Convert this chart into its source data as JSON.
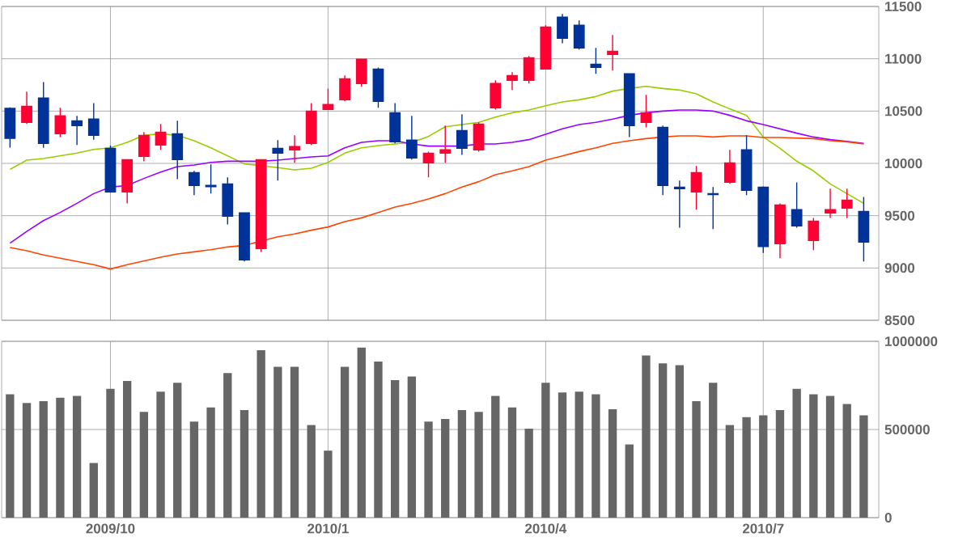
{
  "chart_data": [
    {
      "type": "candlestick",
      "categories": [
        null,
        null,
        null,
        null,
        null,
        null,
        "2009/10",
        null,
        null,
        null,
        null,
        null,
        null,
        null,
        null,
        null,
        null,
        null,
        null,
        "2010/1",
        null,
        null,
        null,
        null,
        null,
        null,
        null,
        null,
        null,
        null,
        null,
        null,
        "2010/4",
        null,
        null,
        null,
        null,
        null,
        null,
        null,
        null,
        null,
        null,
        null,
        null,
        "2010/7",
        null,
        null,
        null,
        null,
        null,
        null
      ],
      "ohlc": [
        [
          10526,
          10536,
          10150,
          10240
        ],
        [
          10392,
          10686,
          10376,
          10546
        ],
        [
          10624,
          10778,
          10149,
          10191
        ],
        [
          10283,
          10531,
          10252,
          10454
        ],
        [
          10407,
          10454,
          10175,
          10361
        ],
        [
          10423,
          10577,
          10227,
          10268
        ],
        [
          10144,
          10170,
          9720,
          9727
        ],
        [
          9727,
          10040,
          9618,
          10036
        ],
        [
          10067,
          10299,
          10020,
          10268
        ],
        [
          10175,
          10376,
          10129,
          10299
        ],
        [
          10283,
          10407,
          9850,
          10036
        ],
        [
          9912,
          9928,
          9696,
          9789
        ],
        [
          9789,
          9990,
          9711,
          9778
        ],
        [
          9804,
          9866,
          9417,
          9495
        ],
        [
          9526,
          9530,
          9062,
          9077
        ],
        [
          9185,
          10040,
          9154,
          10036
        ],
        [
          10144,
          10222,
          9835,
          10098
        ],
        [
          10129,
          10268,
          10005,
          10160
        ],
        [
          10191,
          10577,
          10175,
          10500
        ],
        [
          10515,
          10716,
          10510,
          10562
        ],
        [
          10608,
          10840,
          10593,
          10809
        ],
        [
          10763,
          11000,
          10732,
          10995
        ],
        [
          10902,
          10917,
          10531,
          10593
        ],
        [
          10484,
          10577,
          10191,
          10206
        ],
        [
          10222,
          10454,
          10036,
          10051
        ],
        [
          10005,
          10113,
          9866,
          10098
        ],
        [
          10098,
          10361,
          10005,
          10129
        ],
        [
          10314,
          10469,
          10082,
          10144
        ],
        [
          10129,
          10392,
          10113,
          10376
        ],
        [
          10531,
          10794,
          10515,
          10763
        ],
        [
          10794,
          10871,
          10701,
          10840
        ],
        [
          10794,
          11026,
          10763,
          11010
        ],
        [
          10902,
          11320,
          10900,
          11304
        ],
        [
          11397,
          11428,
          11149,
          11196
        ],
        [
          11320,
          11366,
          11088,
          11103
        ],
        [
          10948,
          11103,
          10856,
          10917
        ],
        [
          11041,
          11227,
          10887,
          11072
        ],
        [
          10856,
          10860,
          10252,
          10361
        ],
        [
          10392,
          10655,
          10345,
          10484
        ],
        [
          10345,
          10361,
          9696,
          9789
        ],
        [
          9773,
          9835,
          9386,
          9758
        ],
        [
          9727,
          9974,
          9557,
          9912
        ],
        [
          9711,
          9773,
          9371,
          9701
        ],
        [
          9819,
          10129,
          9804,
          10005
        ],
        [
          10129,
          10268,
          9696,
          9742
        ],
        [
          9773,
          9780,
          9144,
          9206
        ],
        [
          9232,
          9618,
          9093,
          9603
        ],
        [
          9557,
          9819,
          9386,
          9402
        ],
        [
          9263,
          9479,
          9170,
          9448
        ],
        [
          9526,
          9758,
          9479,
          9557
        ],
        [
          9572,
          9758,
          9479,
          9649
        ],
        [
          9541,
          9680,
          9062,
          9247
        ]
      ],
      "colors": [
        "#003399",
        "#ff0033",
        "#003399",
        "#ff0033",
        "#003399",
        "#003399",
        "#003399",
        "#ff0033",
        "#ff0033",
        "#ff0033",
        "#003399",
        "#003399",
        "#003399",
        "#003399",
        "#003399",
        "#ff0033",
        "#003399",
        "#ff0033",
        "#ff0033",
        "#ff0033",
        "#ff0033",
        "#ff0033",
        "#003399",
        "#003399",
        "#003399",
        "#ff0033",
        "#ff0033",
        "#003399",
        "#ff0033",
        "#ff0033",
        "#ff0033",
        "#ff0033",
        "#ff0033",
        "#003399",
        "#003399",
        "#003399",
        "#ff0033",
        "#003399",
        "#ff0033",
        "#003399",
        "#003399",
        "#ff0033",
        "#003399",
        "#ff0033",
        "#003399",
        "#003399",
        "#ff0033",
        "#003399",
        "#ff0033",
        "#ff0033",
        "#ff0033",
        "#003399"
      ],
      "series": [
        {
          "type": "line",
          "color": "#99cc00",
          "values": [
            9943,
            10031,
            10046,
            10072,
            10098,
            10134,
            10149,
            10201,
            10268,
            10283,
            10268,
            10216,
            10149,
            10072,
            9995,
            9979,
            9959,
            9938,
            9954,
            10010,
            10098,
            10149,
            10170,
            10185,
            10201,
            10258,
            10350,
            10371,
            10392,
            10443,
            10484,
            10510,
            10551,
            10588,
            10608,
            10639,
            10691,
            10716,
            10737,
            10716,
            10701,
            10665,
            10588,
            10521,
            10459,
            10252,
            10144,
            10021,
            9928,
            9804,
            9711,
            9618
          ]
        },
        {
          "type": "line",
          "color": "#9900ff",
          "values": [
            9237,
            9350,
            9453,
            9531,
            9618,
            9711,
            9773,
            9789,
            9856,
            9917,
            9969,
            9984,
            10010,
            10020,
            10020,
            10020,
            10031,
            10046,
            10062,
            10072,
            10149,
            10201,
            10216,
            10216,
            10185,
            10165,
            10165,
            10165,
            10185,
            10185,
            10201,
            10227,
            10278,
            10330,
            10371,
            10392,
            10423,
            10459,
            10484,
            10500,
            10510,
            10510,
            10500,
            10459,
            10407,
            10371,
            10330,
            10289,
            10252,
            10227,
            10211,
            10191
          ]
        },
        {
          "type": "line",
          "color": "#ff4400",
          "values": [
            9196,
            9165,
            9124,
            9093,
            9062,
            9031,
            8990,
            9031,
            9067,
            9103,
            9134,
            9154,
            9175,
            9201,
            9216,
            9258,
            9299,
            9325,
            9361,
            9392,
            9443,
            9479,
            9531,
            9582,
            9618,
            9660,
            9711,
            9773,
            9825,
            9892,
            9928,
            9969,
            10031,
            10072,
            10113,
            10149,
            10191,
            10216,
            10237,
            10252,
            10263,
            10263,
            10252,
            10263,
            10263,
            10247,
            10247,
            10242,
            10237,
            10216,
            10206,
            10185
          ]
        }
      ],
      "ylim": [
        8500,
        11500
      ],
      "yticks": [
        8500,
        9000,
        9500,
        10000,
        10500,
        11000,
        11500
      ],
      "grid": true,
      "tick_labels": "y"
    },
    {
      "type": "bar",
      "categories": [
        null,
        null,
        null,
        null,
        null,
        null,
        "2009/10",
        null,
        null,
        null,
        null,
        null,
        null,
        null,
        null,
        null,
        null,
        null,
        null,
        "2010/1",
        null,
        null,
        null,
        null,
        null,
        null,
        null,
        null,
        null,
        null,
        null,
        null,
        "2010/4",
        null,
        null,
        null,
        null,
        null,
        null,
        null,
        null,
        null,
        null,
        null,
        null,
        "2010/7",
        null,
        null,
        null,
        null,
        null,
        null
      ],
      "values": [
        700000,
        650000,
        660000,
        680000,
        690000,
        310000,
        730000,
        775000,
        600000,
        715000,
        765000,
        545000,
        625000,
        820000,
        610000,
        950000,
        855000,
        855000,
        525000,
        380000,
        855000,
        965000,
        885000,
        780000,
        800000,
        545000,
        560000,
        610000,
        600000,
        690000,
        625000,
        505000,
        765000,
        710000,
        715000,
        700000,
        615000,
        415000,
        920000,
        875000,
        865000,
        660000,
        765000,
        525000,
        570000,
        580000,
        610000,
        730000,
        700000,
        690000,
        645000,
        580000
      ],
      "color": "#666666",
      "ylim": [
        0,
        1000000
      ],
      "yticks": [
        0,
        500000,
        1000000
      ],
      "grid": true
    }
  ]
}
